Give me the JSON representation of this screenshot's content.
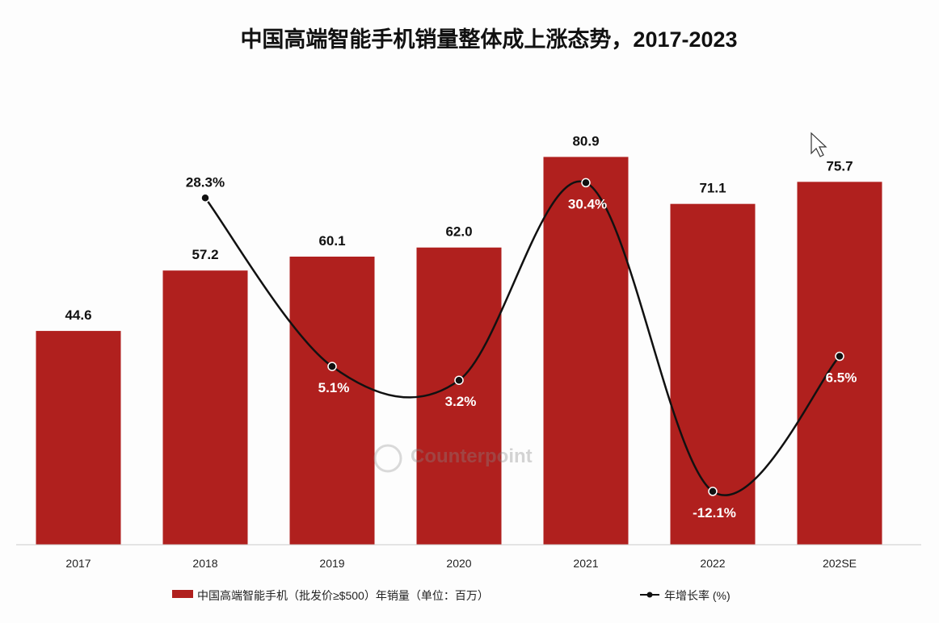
{
  "chart_data": {
    "type": "bar+line",
    "title": "中国高端智能手机销量整体成上涨态势，2017-2023",
    "categories": [
      "2017",
      "2018",
      "2019",
      "2020",
      "2021",
      "2022",
      "202SE"
    ],
    "series": [
      {
        "name": "中国高端智能手机（批发价≥$500）年销量（单位：百万）",
        "type": "bar",
        "values": [
          44.6,
          57.2,
          60.1,
          62.0,
          80.9,
          71.1,
          75.7
        ],
        "labels": [
          "44.6",
          "57.2",
          "60.1",
          "62.0",
          "80.9",
          "71.1",
          "75.7"
        ],
        "color": "#b0201e"
      },
      {
        "name": "年增长率 (%)",
        "type": "line",
        "values": [
          null,
          28.3,
          5.1,
          3.2,
          30.4,
          -12.1,
          6.5
        ],
        "labels": [
          "",
          "28.3%",
          "5.1%",
          "3.2%",
          "30.4%",
          "-12.1%",
          "6.5%"
        ],
        "color": "#111111"
      }
    ],
    "legend": "bottom",
    "grid": false,
    "watermark": "Counterpoint Technology Market Research"
  }
}
